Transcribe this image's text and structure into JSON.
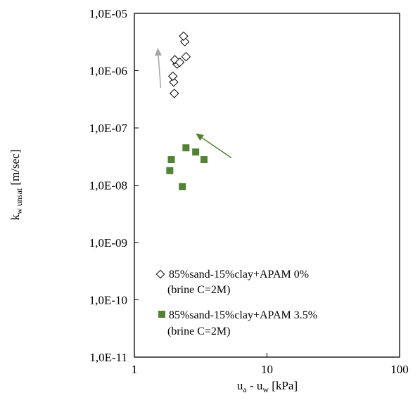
{
  "chart_data": {
    "type": "scatter",
    "x_scale": "log",
    "y_scale": "log",
    "xlim": [
      1,
      100
    ],
    "ylim": [
      1e-11,
      1e-05
    ],
    "grid": false,
    "legend_placement": "bottom-left (inside plot)",
    "xlabel": {
      "u": "u",
      "a": "a",
      "dash": " - ",
      "w": "w",
      "unit": " [kPa]"
    },
    "ylabel": {
      "k": "k",
      "sub": "w unsat",
      "unit": " [m/sec]"
    },
    "x_ticks": [
      {
        "value": 1,
        "label": "1"
      },
      {
        "value": 10,
        "label": "10"
      },
      {
        "value": 100,
        "label": "100"
      }
    ],
    "y_ticks": [
      {
        "value": 1e-05,
        "label": "1,0E-05"
      },
      {
        "value": 1e-06,
        "label": "1,0E-06"
      },
      {
        "value": 1e-07,
        "label": "1,0E-07"
      },
      {
        "value": 1e-08,
        "label": "1,0E-08"
      },
      {
        "value": 1e-09,
        "label": "1,0E-09"
      },
      {
        "value": 1e-10,
        "label": "1,0E-10"
      },
      {
        "value": 1e-11,
        "label": "1,0E-11"
      }
    ],
    "series": [
      {
        "name_line1": "85%sand-15%clay+APAM 0%",
        "name_line2": "(brine C=2M)",
        "marker": "diamond-open",
        "color": "#000000",
        "points": [
          {
            "x": 2.0,
            "y": 4e-07
          },
          {
            "x": 1.98,
            "y": 6.3e-07
          },
          {
            "x": 1.95,
            "y": 8e-07
          },
          {
            "x": 2.1,
            "y": 1.3e-06
          },
          {
            "x": 2.02,
            "y": 1.55e-06
          },
          {
            "x": 2.2,
            "y": 1.4e-06
          },
          {
            "x": 2.45,
            "y": 1.75e-06
          },
          {
            "x": 2.4,
            "y": 3.2e-06
          },
          {
            "x": 2.35,
            "y": 4e-06
          }
        ]
      },
      {
        "name_line1": "85%sand-15%clay+APAM 3.5%",
        "name_line2": "(brine C=2M)",
        "marker": "square-filled",
        "color": "#538135",
        "points": [
          {
            "x": 1.9,
            "y": 2.8e-08
          },
          {
            "x": 1.85,
            "y": 1.8e-08
          },
          {
            "x": 2.3,
            "y": 9.5e-09
          },
          {
            "x": 2.45,
            "y": 4.5e-08
          },
          {
            "x": 2.9,
            "y": 3.8e-08
          },
          {
            "x": 3.35,
            "y": 2.8e-08
          }
        ]
      }
    ],
    "annotations": [
      {
        "kind": "arrow",
        "color": "#a6a6a6",
        "from": {
          "x": 1.58,
          "y": 5e-07
        },
        "to": {
          "x": 1.5,
          "y": 2.5e-06
        }
      },
      {
        "kind": "arrow",
        "color": "#538135",
        "from": {
          "x": 5.4,
          "y": 3e-08
        },
        "to": {
          "x": 2.9,
          "y": 8e-08
        }
      }
    ]
  }
}
